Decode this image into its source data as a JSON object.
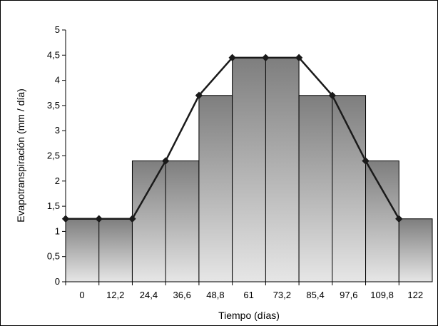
{
  "chart_data": {
    "type": "bar",
    "title": "",
    "xlabel": "Tiempo (días)",
    "ylabel": "Evapotranspiración (mm / día)",
    "ylim": [
      0,
      5
    ],
    "yticks": [
      "0",
      "0,5",
      "1",
      "1,5",
      "2",
      "2,5",
      "3",
      "3,5",
      "4",
      "4,5",
      "5"
    ],
    "categories": [
      "0",
      "12,2",
      "24,4",
      "36,6",
      "48,8",
      "61",
      "73,2",
      "85,4",
      "97,6",
      "109,8",
      "122"
    ],
    "bars": [
      {
        "x_start": 0,
        "x_end": 24.4,
        "value": 1.25
      },
      {
        "x_start": 24.4,
        "x_end": 48.8,
        "value": 2.4
      },
      {
        "x_start": 48.8,
        "x_end": 61,
        "value": 3.7
      },
      {
        "x_start": 61,
        "x_end": 85.4,
        "value": 4.45
      },
      {
        "x_start": 85.4,
        "x_end": 109.8,
        "value": 3.7
      },
      {
        "x_start": 109.8,
        "x_end": 122,
        "value": 2.4
      },
      {
        "x_start": 122,
        "x_end": 134.2,
        "value": 1.25
      }
    ],
    "series": [
      {
        "type": "line",
        "x": [
          0,
          12.2,
          24.4,
          36.6,
          48.8,
          61,
          73.2,
          85.4,
          97.6,
          109.8,
          122
        ],
        "values": [
          1.25,
          1.25,
          1.25,
          2.4,
          3.7,
          4.45,
          4.45,
          4.45,
          3.7,
          2.4,
          1.25
        ]
      }
    ],
    "grid": false,
    "legend": "none"
  }
}
